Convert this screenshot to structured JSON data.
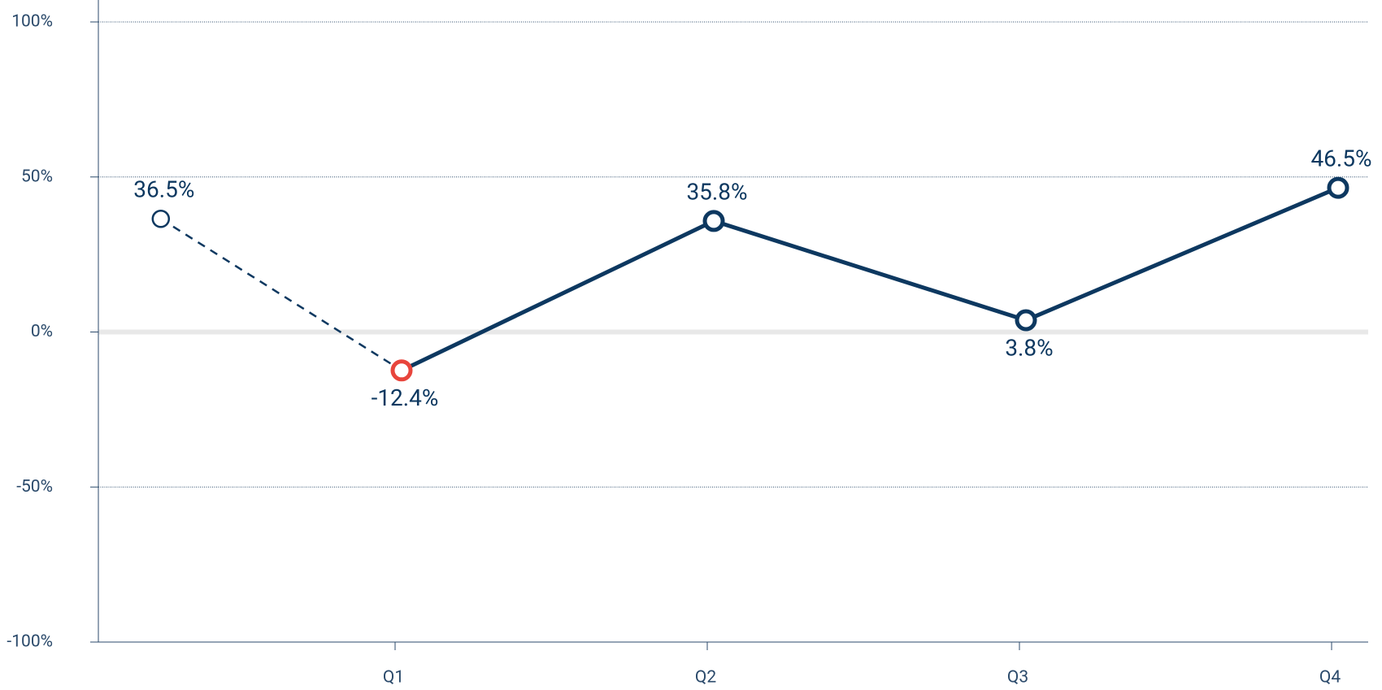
{
  "chart_data": {
    "type": "line",
    "categories": [
      null,
      "Q1",
      "Q2",
      "Q3",
      "Q4"
    ],
    "series": [
      {
        "color": "#0d3860",
        "values": [
          36.5,
          -12.4,
          35.8,
          3.8,
          46.5
        ],
        "value_labels": [
          "36.5%",
          "-12.4%",
          "35.8%",
          "3.8%",
          "46.5%"
        ],
        "marker_colors": [
          "#0d3860",
          "#e8453c",
          "#0d3860",
          "#0d3860",
          "#0d3860"
        ],
        "label_positions": [
          "above",
          "below",
          "above",
          "below",
          "above"
        ],
        "segment_styles": [
          "dashed",
          "solid",
          "solid",
          "solid"
        ]
      }
    ],
    "ylim": [
      -100,
      100
    ],
    "yticks": [
      {
        "value": 100,
        "label": "100%"
      },
      {
        "value": 50,
        "label": "50%"
      },
      {
        "value": 0,
        "label": "0%"
      },
      {
        "value": -50,
        "label": "-50%"
      },
      {
        "value": -100,
        "label": "-100%"
      }
    ],
    "grid": true
  }
}
